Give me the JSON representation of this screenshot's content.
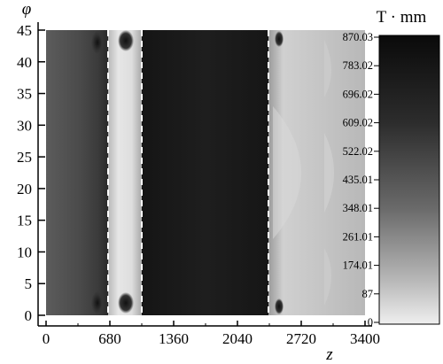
{
  "chart_data": {
    "type": "heatmap",
    "xlabel": "z",
    "ylabel": "φ",
    "x_ticks": [
      "0",
      "680",
      "1360",
      "2040",
      "2720",
      "3400"
    ],
    "y_ticks": [
      "0",
      "5",
      "10",
      "15",
      "20",
      "25",
      "30",
      "35",
      "40",
      "45"
    ],
    "xlim": [
      0,
      3400
    ],
    "ylim": [
      0,
      45
    ],
    "colorbar": {
      "unit": "T · mm",
      "ticks": [
        "870.03",
        "783.02",
        "696.02",
        "609.02",
        "522.02",
        "435.01",
        "348.01",
        "261.01",
        "174.01",
        "87",
        "0"
      ],
      "range": [
        0,
        870.03
      ],
      "colormap": "grayscale: low values light, high values dark"
    },
    "boundaries_z": [
      640,
      990,
      2330
    ],
    "regions": [
      {
        "z": [
          0,
          640
        ],
        "level": 780
      },
      {
        "z": [
          640,
          990
        ],
        "level": 140
      },
      {
        "z": [
          990,
          2330
        ],
        "level": 850
      },
      {
        "z": [
          2330,
          3400
        ],
        "level": 230
      }
    ],
    "grid": false
  }
}
